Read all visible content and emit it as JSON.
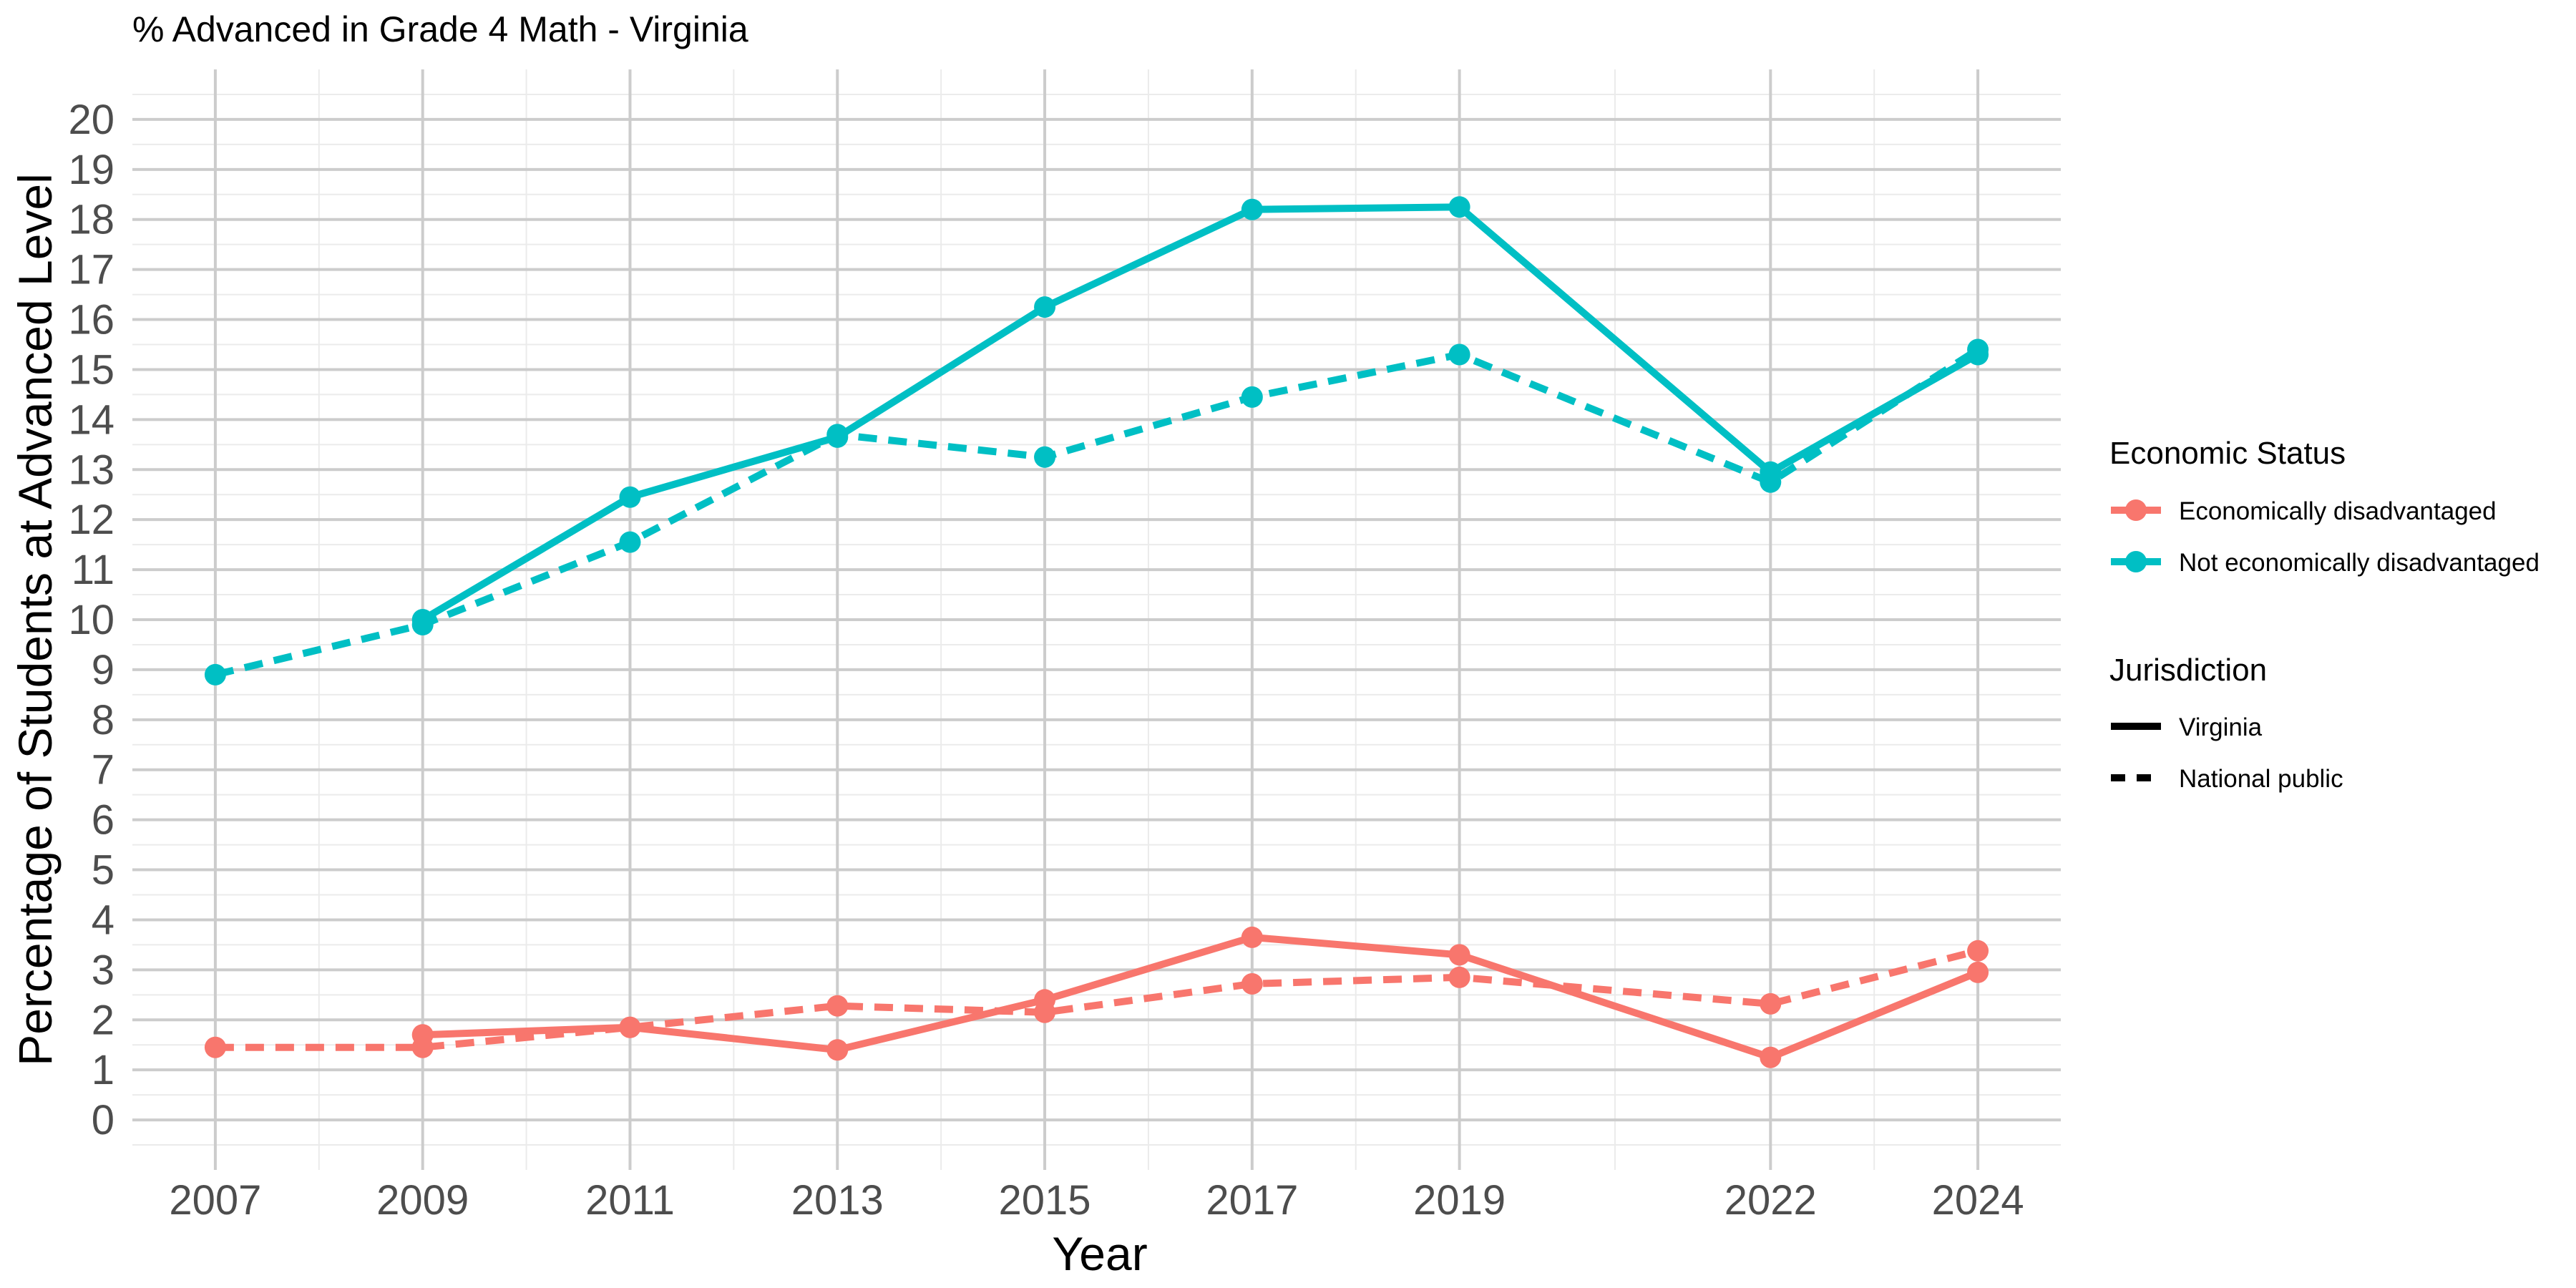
{
  "chart_data": {
    "type": "line",
    "title": "% Advanced in Grade 4 Math - Virginia",
    "xlabel": "Year",
    "ylabel": "Percentage of Students at Advanced Level",
    "x_ticks": [
      "2007",
      "2009",
      "2011",
      "2013",
      "2015",
      "2017",
      "2019",
      "2022",
      "2024"
    ],
    "y_ticks": [
      "0",
      "1",
      "2",
      "3",
      "4",
      "5",
      "6",
      "7",
      "8",
      "9",
      "10",
      "11",
      "12",
      "13",
      "14",
      "15",
      "16",
      "17",
      "18",
      "19",
      "20"
    ],
    "xlim": [
      2006.2,
      2024.8
    ],
    "ylim": [
      -1,
      21
    ],
    "grid": true,
    "legend_position": "right",
    "legends": [
      {
        "title": "Economic Status",
        "entries": [
          {
            "label": "Economically disadvantaged",
            "color": "#F8766D"
          },
          {
            "label": "Not economically disadvantaged",
            "color": "#00BFC4"
          }
        ]
      },
      {
        "title": "Jurisdiction",
        "entries": [
          {
            "label": "Virginia",
            "linestyle": "solid"
          },
          {
            "label": "National public",
            "linestyle": "dashed"
          }
        ]
      }
    ],
    "series": [
      {
        "status": "Economically disadvantaged",
        "jurisdiction": "Virginia",
        "color": "#F8766D",
        "dashed": false,
        "points": [
          [
            2009,
            1.7
          ],
          [
            2011,
            1.85
          ],
          [
            2013,
            1.4
          ],
          [
            2015,
            2.4
          ],
          [
            2017,
            3.65
          ],
          [
            2019,
            3.3
          ],
          [
            2022,
            1.25
          ],
          [
            2024,
            2.95
          ]
        ]
      },
      {
        "status": "Economically disadvantaged",
        "jurisdiction": "National public",
        "color": "#F8766D",
        "dashed": true,
        "points": [
          [
            2007,
            1.45
          ],
          [
            2009,
            1.45
          ],
          [
            2011,
            1.85
          ],
          [
            2013,
            2.28
          ],
          [
            2015,
            2.15
          ],
          [
            2017,
            2.72
          ],
          [
            2019,
            2.85
          ],
          [
            2022,
            2.32
          ],
          [
            2024,
            3.38
          ]
        ]
      },
      {
        "status": "Not economically disadvantaged",
        "jurisdiction": "Virginia",
        "color": "#00BFC4",
        "dashed": false,
        "points": [
          [
            2009,
            10.0
          ],
          [
            2011,
            12.45
          ],
          [
            2013,
            13.65
          ],
          [
            2015,
            16.25
          ],
          [
            2017,
            18.2
          ],
          [
            2019,
            18.25
          ],
          [
            2022,
            12.95
          ],
          [
            2024,
            15.3
          ]
        ]
      },
      {
        "status": "Not economically disadvantaged",
        "jurisdiction": "National public",
        "color": "#00BFC4",
        "dashed": true,
        "points": [
          [
            2007,
            8.9
          ],
          [
            2009,
            9.9
          ],
          [
            2011,
            11.55
          ],
          [
            2013,
            13.7
          ],
          [
            2015,
            13.25
          ],
          [
            2017,
            14.45
          ],
          [
            2019,
            15.3
          ],
          [
            2022,
            12.75
          ],
          [
            2024,
            15.4
          ]
        ]
      }
    ]
  }
}
